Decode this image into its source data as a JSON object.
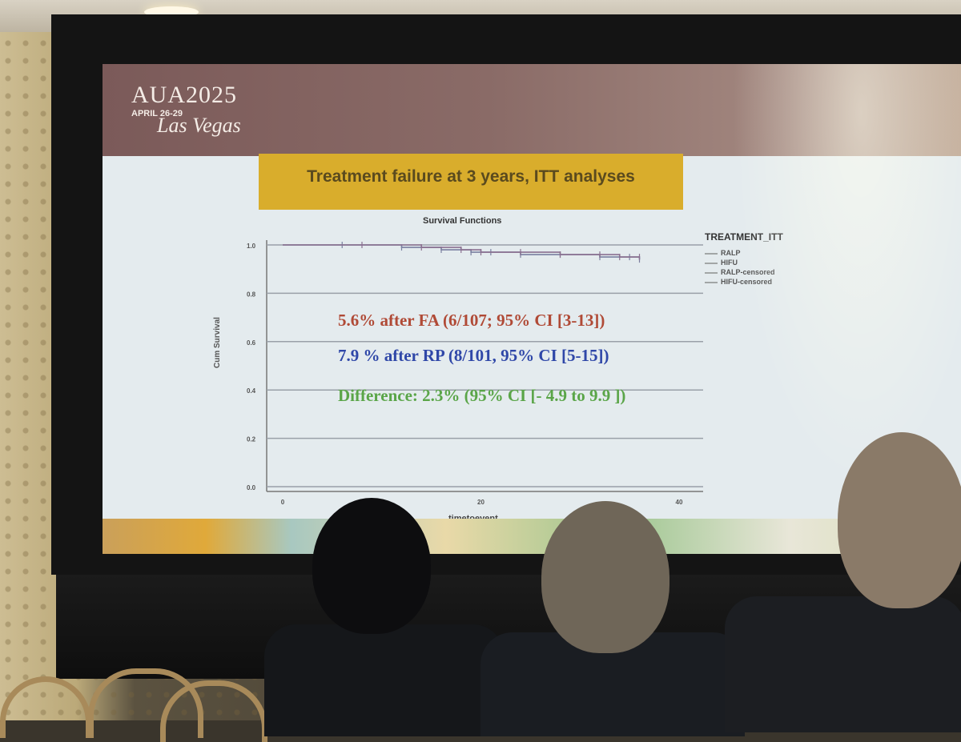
{
  "slide": {
    "conference": "AUA2025",
    "dates": "APRIL 26-29",
    "city": "Las Vegas",
    "title": "Treatment failure at 3 years, ITT analyses"
  },
  "chart_data": {
    "type": "line",
    "title": "Survival Functions",
    "xlabel": "timetoevent",
    "ylabel": "Cum Survival",
    "x_ticks": [
      "0",
      "20",
      "40"
    ],
    "y_ticks": [
      "1.0",
      "0.8",
      "0.6",
      "0.4",
      "0.2",
      "0.0"
    ],
    "xlim": [
      0,
      40
    ],
    "ylim": [
      0,
      1.0
    ],
    "legend_title": "TREATMENT_ITT",
    "legend_placement": "right",
    "legend": [
      "RALP",
      "HIFU",
      "RALP-censored",
      "HIFU-censored"
    ],
    "series": [
      {
        "name": "RALP",
        "color": "#7a7fa0",
        "x": [
          0,
          6,
          12,
          16,
          19,
          21,
          24,
          28,
          32,
          35,
          36
        ],
        "y": [
          1.0,
          1.0,
          0.99,
          0.98,
          0.97,
          0.97,
          0.96,
          0.96,
          0.95,
          0.95,
          0.94
        ]
      },
      {
        "name": "HIFU",
        "color": "#8a7090",
        "x": [
          0,
          8,
          14,
          18,
          20,
          24,
          28,
          32,
          34,
          36
        ],
        "y": [
          1.0,
          1.0,
          0.99,
          0.98,
          0.97,
          0.97,
          0.96,
          0.96,
          0.95,
          0.95
        ]
      }
    ]
  },
  "results": {
    "fa": "5.6% after FA (6/107; 95% CI [3-13])",
    "rp": "7.9 % after RP (8/101, 95% CI [5-15])",
    "difference": "Difference: 2.3% (95% CI [- 4.9 to 9.9 ])"
  }
}
